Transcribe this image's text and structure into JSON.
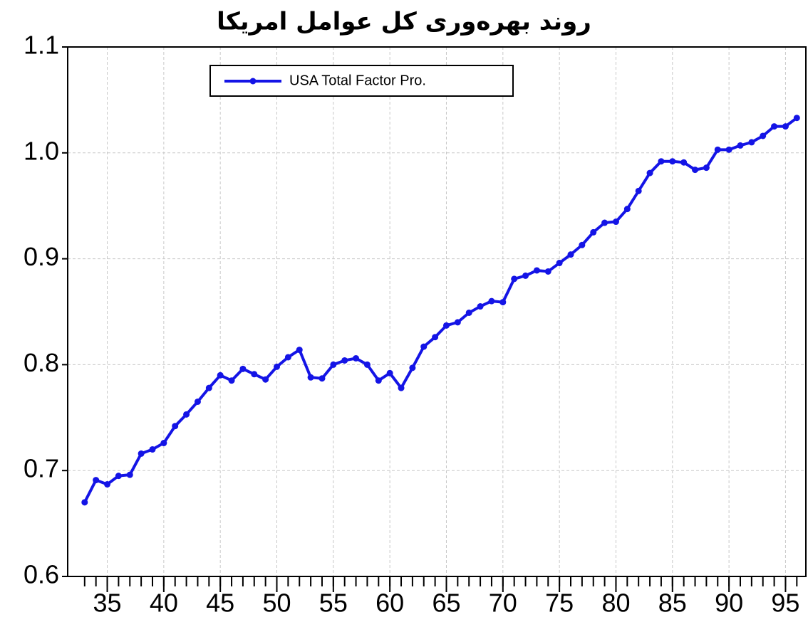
{
  "chart_data": {
    "type": "line",
    "title": "روند بهره‌وری کل عوامل امریکا",
    "x": [
      33,
      34,
      35,
      36,
      37,
      38,
      39,
      40,
      41,
      42,
      43,
      44,
      45,
      46,
      47,
      48,
      49,
      50,
      51,
      52,
      53,
      54,
      55,
      56,
      57,
      58,
      59,
      60,
      61,
      62,
      63,
      64,
      65,
      66,
      67,
      68,
      69,
      70,
      71,
      72,
      73,
      74,
      75,
      76,
      77,
      78,
      79,
      80,
      81,
      82,
      83,
      84,
      85,
      86,
      87,
      88,
      89,
      90,
      91,
      92,
      93,
      94,
      95,
      96
    ],
    "series": [
      {
        "name": "USA Total Factor Pro.",
        "color": "#1414e6",
        "values": [
          0.67,
          0.691,
          0.687,
          0.695,
          0.696,
          0.716,
          0.72,
          0.726,
          0.742,
          0.753,
          0.765,
          0.778,
          0.79,
          0.785,
          0.796,
          0.791,
          0.786,
          0.798,
          0.807,
          0.814,
          0.788,
          0.787,
          0.8,
          0.804,
          0.806,
          0.8,
          0.785,
          0.792,
          0.778,
          0.797,
          0.817,
          0.826,
          0.837,
          0.84,
          0.849,
          0.855,
          0.86,
          0.859,
          0.881,
          0.884,
          0.889,
          0.888,
          0.896,
          0.904,
          0.913,
          0.925,
          0.934,
          0.935,
          0.947,
          0.964,
          0.981,
          0.992,
          0.992,
          0.991,
          0.984,
          0.986,
          1.003,
          1.003,
          1.007,
          1.01,
          1.016,
          1.025,
          1.025,
          1.033
        ]
      }
    ],
    "xlim": [
      31.5,
      96.8
    ],
    "xticks": [
      35,
      40,
      45,
      50,
      55,
      60,
      65,
      70,
      75,
      80,
      85,
      90,
      95
    ],
    "ylim": [
      0.6,
      1.1
    ],
    "yticks": [
      0.6,
      0.7,
      0.8,
      0.9,
      {
        "value": 1.0,
        "label": "1.0"
      },
      1.1
    ],
    "grid": true
  }
}
